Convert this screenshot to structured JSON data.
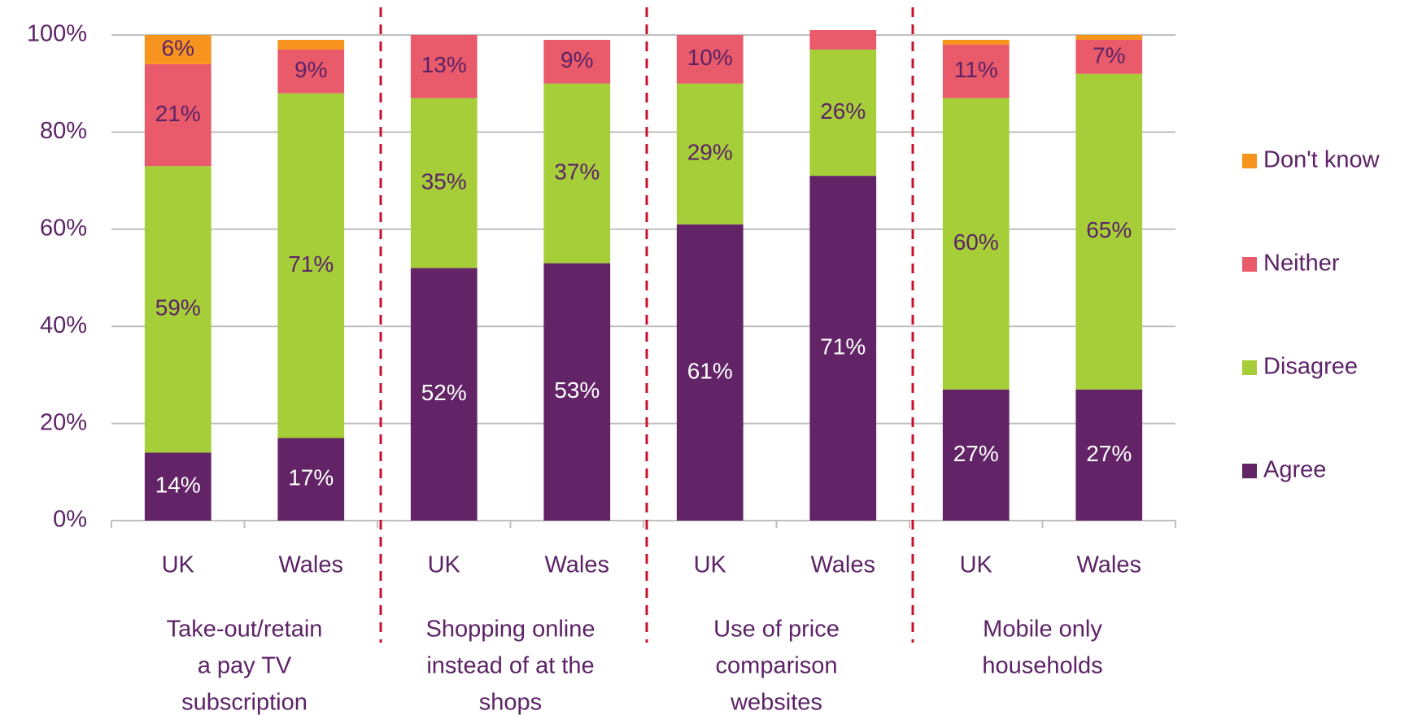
{
  "chart_data": {
    "type": "stacked_bar",
    "categories": [
      "UK",
      "Wales",
      "UK",
      "Wales",
      "UK",
      "Wales",
      "UK",
      "Wales"
    ],
    "groups": [
      {
        "lines": [
          "Take-out/retain",
          "a pay TV",
          "subscription"
        ]
      },
      {
        "lines": [
          "Shopping online",
          "instead of at the",
          "shops"
        ]
      },
      {
        "lines": [
          "Use of price",
          "comparison",
          "websites"
        ]
      },
      {
        "lines": [
          "Mobile only",
          "households"
        ]
      }
    ],
    "series": [
      {
        "name": "Agree",
        "color": "#622466",
        "values": [
          14,
          17,
          52,
          53,
          61,
          71,
          27,
          27
        ],
        "value_labels": [
          "14%",
          "17%",
          "52%",
          "53%",
          "61%",
          "71%",
          "27%",
          "27%"
        ]
      },
      {
        "name": "Disagree",
        "color": "#a6ce39",
        "values": [
          59,
          71,
          35,
          37,
          29,
          26,
          60,
          65
        ],
        "value_labels": [
          "59%",
          "71%",
          "35%",
          "37%",
          "29%",
          "26%",
          "60%",
          "65%"
        ]
      },
      {
        "name": "Neither",
        "color": "#e95a6b",
        "values": [
          21,
          9,
          13,
          9,
          10,
          4,
          11,
          7
        ],
        "value_labels": [
          "21%",
          "9%",
          "13%",
          "9%",
          "10%",
          null,
          "11%",
          "7%"
        ]
      },
      {
        "name": "Don't know",
        "color": "#f7941d",
        "values": [
          6,
          2,
          0,
          0,
          0,
          0,
          1,
          1
        ],
        "value_labels": [
          "6%",
          null,
          null,
          null,
          null,
          null,
          null,
          null
        ]
      }
    ],
    "ylim": [
      0,
      100
    ],
    "yticks": [
      {
        "value": 0,
        "label": "0%"
      },
      {
        "value": 20,
        "label": "20%"
      },
      {
        "value": 40,
        "label": "40%"
      },
      {
        "value": 60,
        "label": "60%"
      },
      {
        "value": 80,
        "label": "80%"
      },
      {
        "value": 100,
        "label": "100%"
      }
    ],
    "grid": true,
    "legend": "right"
  }
}
